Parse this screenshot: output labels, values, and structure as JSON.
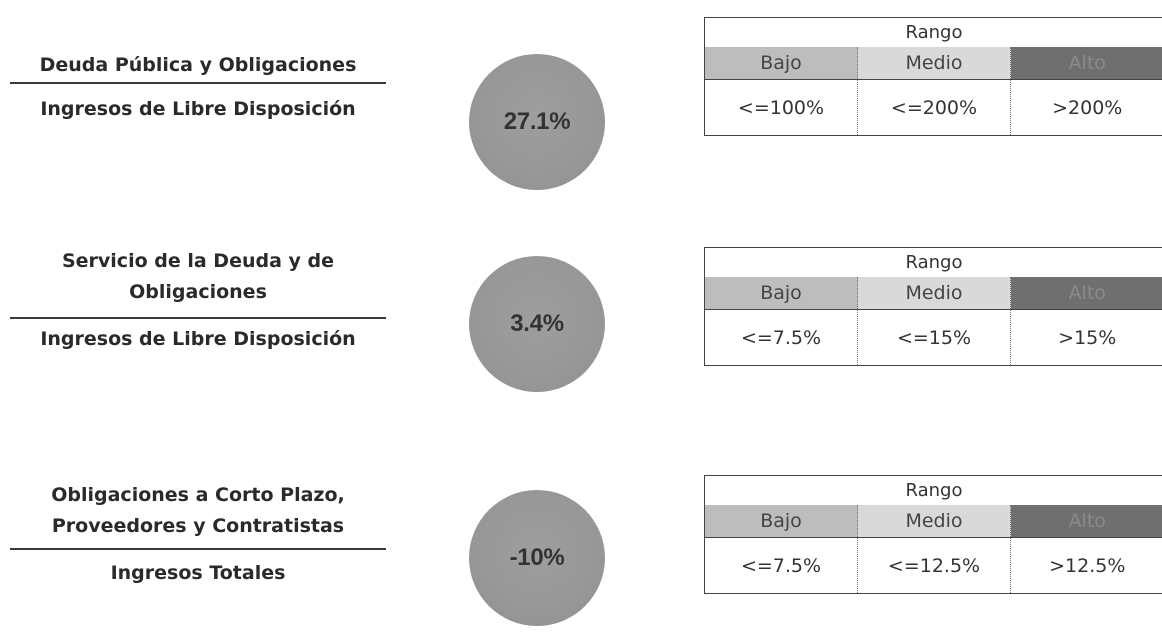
{
  "indicators": [
    {
      "numerator": [
        "Deuda Pública y Obligaciones"
      ],
      "denominator": [
        "Ingresos de Libre Disposición"
      ],
      "value": "27.1%",
      "range": {
        "title": "Rango",
        "levels": [
          "Bajo",
          "Medio",
          "Alto"
        ],
        "thresholds": [
          "<=100%",
          "<=200%",
          ">200%"
        ]
      }
    },
    {
      "numerator": [
        "Servicio de la Deuda y de",
        "Obligaciones"
      ],
      "denominator": [
        "Ingresos de Libre Disposición"
      ],
      "value": "3.4%",
      "range": {
        "title": "Rango",
        "levels": [
          "Bajo",
          "Medio",
          "Alto"
        ],
        "thresholds": [
          "<=7.5%",
          "<=15%",
          ">15%"
        ]
      }
    },
    {
      "numerator": [
        "Obligaciones a Corto Plazo,",
        "Proveedores y Contratistas"
      ],
      "denominator": [
        "Ingresos Totales"
      ],
      "value": "-10%",
      "range": {
        "title": "Rango",
        "levels": [
          "Bajo",
          "Medio",
          "Alto"
        ],
        "thresholds": [
          "<=7.5%",
          "<=12.5%",
          ">12.5%"
        ]
      }
    }
  ],
  "colors": {
    "circle": "#979797",
    "level_low": "#bdbdbd",
    "level_mid": "#d9d9d9",
    "level_high": "#6f6f6f"
  }
}
